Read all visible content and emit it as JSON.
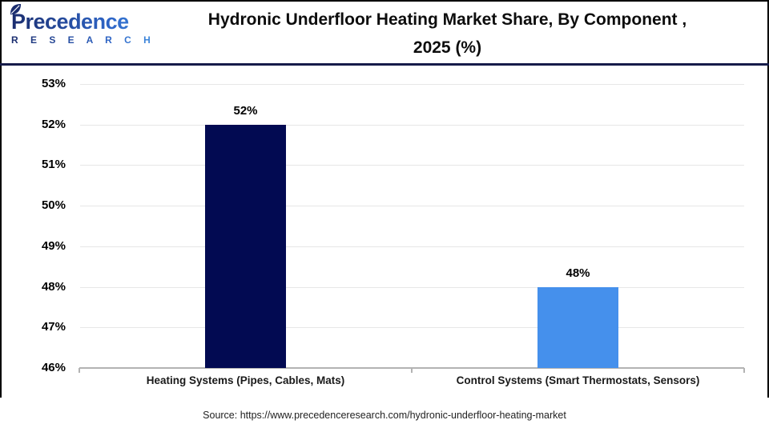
{
  "header": {
    "logo_brand": "Precedence",
    "logo_sub": "R E S E A R C H",
    "title_line1": "Hydronic Underfloor Heating Market Share, By Component ,",
    "title_line2": "2025 (%)"
  },
  "chart_data": {
    "type": "bar",
    "title": "Hydronic Underfloor Heating Market Share, By Component , 2025 (%)",
    "categories": [
      "Heating Systems (Pipes, Cables, Mats)",
      "Control Systems (Smart Thermostats, Sensors)"
    ],
    "values": [
      52,
      48
    ],
    "value_labels": [
      "52%",
      "48%"
    ],
    "bar_colors": [
      "#020a52",
      "#4590ec"
    ],
    "xlabel": "",
    "ylabel": "",
    "ylim": [
      46,
      53
    ],
    "ytick_labels": [
      "53%",
      "52%",
      "51%",
      "50%",
      "49%",
      "48%",
      "47%",
      "46%"
    ],
    "grid": true,
    "legend_position": "none"
  },
  "footer": {
    "source": "Source: https://www.precedenceresearch.com/hydronic-underfloor-heating-market"
  }
}
